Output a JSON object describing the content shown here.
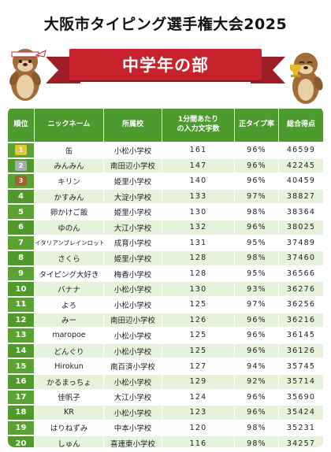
{
  "title": "大阪市タイピング選手権大会2025",
  "banner": "中学年の部",
  "colors": {
    "header_green": "#4d9a2f",
    "row_alt": "#e6f2d9",
    "banner_red": "#c8232c"
  },
  "columns": [
    "順位",
    "ニックネーム",
    "所属校",
    "1分間あたりの入力文字数",
    "正タイプ率",
    "総合得点"
  ],
  "rows": [
    {
      "rank": "1",
      "medal": "gold",
      "name": "缶",
      "school": "小松小学校",
      "cpm": "161",
      "accuracy": "96%",
      "score": "46599"
    },
    {
      "rank": "2",
      "medal": "silver",
      "name": "みんみん",
      "school": "南田辺小学校",
      "cpm": "147",
      "accuracy": "96%",
      "score": "42245"
    },
    {
      "rank": "3",
      "medal": "bronze",
      "name": "キリン",
      "school": "姫里小学校",
      "cpm": "140",
      "accuracy": "96%",
      "score": "40459"
    },
    {
      "rank": "4",
      "name": "かすみん",
      "school": "大淀小学校",
      "cpm": "133",
      "accuracy": "97%",
      "score": "38827"
    },
    {
      "rank": "5",
      "name": "卵かけご飯",
      "school": "姫里小学校",
      "cpm": "130",
      "accuracy": "98%",
      "score": "38364"
    },
    {
      "rank": "6",
      "name": "ゆのん",
      "school": "大江小学校",
      "cpm": "132",
      "accuracy": "96%",
      "score": "38025"
    },
    {
      "rank": "7",
      "name": "イタリアンブレインロット",
      "school": "成育小学校",
      "cpm": "131",
      "accuracy": "95%",
      "score": "37489",
      "small": true
    },
    {
      "rank": "8",
      "name": "さくら",
      "school": "姫里小学校",
      "cpm": "128",
      "accuracy": "98%",
      "score": "37460"
    },
    {
      "rank": "9",
      "name": "タイピング大好き",
      "school": "梅香小学校",
      "cpm": "128",
      "accuracy": "95%",
      "score": "36566"
    },
    {
      "rank": "10",
      "name": "バナナ",
      "school": "小松小学校",
      "cpm": "130",
      "accuracy": "93%",
      "score": "36276"
    },
    {
      "rank": "11",
      "name": "よろ",
      "school": "小松小学校",
      "cpm": "125",
      "accuracy": "97%",
      "score": "36256"
    },
    {
      "rank": "12",
      "name": "みー",
      "school": "南田辺小学校",
      "cpm": "126",
      "accuracy": "96%",
      "score": "36216"
    },
    {
      "rank": "13",
      "name": "maropoe",
      "school": "小松小学校",
      "cpm": "125",
      "accuracy": "96%",
      "score": "36145"
    },
    {
      "rank": "14",
      "name": "どんぐり",
      "school": "小松小学校",
      "cpm": "125",
      "accuracy": "96%",
      "score": "36126"
    },
    {
      "rank": "15",
      "name": "Hirokun",
      "school": "南百済小学校",
      "cpm": "127",
      "accuracy": "94%",
      "score": "35745"
    },
    {
      "rank": "16",
      "name": "かるまっちょ",
      "school": "小松小学校",
      "cpm": "129",
      "accuracy": "92%",
      "score": "35714"
    },
    {
      "rank": "17",
      "name": "佳帆子",
      "school": "大江小学校",
      "cpm": "124",
      "accuracy": "96%",
      "score": "35690"
    },
    {
      "rank": "18",
      "name": "KR",
      "school": "小松小学校",
      "cpm": "123",
      "accuracy": "96%",
      "score": "35424"
    },
    {
      "rank": "19",
      "name": "はりねずみ",
      "school": "中本小学校",
      "cpm": "120",
      "accuracy": "98%",
      "score": "35231"
    },
    {
      "rank": "20",
      "name": "しゅん",
      "school": "喜連東小学校",
      "cpm": "116",
      "accuracy": "98%",
      "score": "34257"
    }
  ]
}
